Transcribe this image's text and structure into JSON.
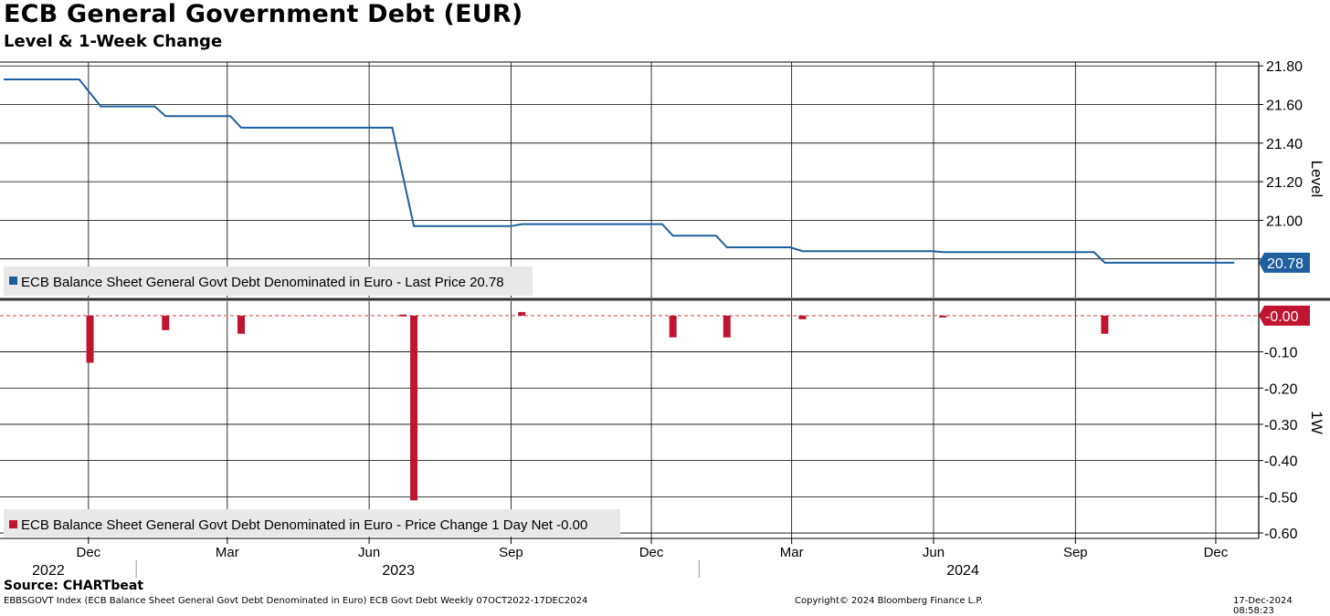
{
  "header": {
    "title": "ECB General Government Debt (EUR)",
    "subtitle": "Level & 1-Week Change"
  },
  "footer": {
    "source": "Source: CHARTbeat",
    "description": "EBBSGOVT Index (ECB Balance Sheet General Govt Debt Denominated in Euro) ECB Govt Debt  Weekly 07OCT2022-17DEC2024",
    "copyright": "Copyright© 2024 Bloomberg Finance L.P.",
    "timestamp": "17-Dec-2024 08:58:23"
  },
  "colors": {
    "level_line": "#1f5f9e",
    "change_bar": "#c0152f",
    "grid": "#000000",
    "zero_line": "#d9686e"
  },
  "chart_data": [
    {
      "type": "line",
      "ylabel": "Level",
      "ylim": [
        20.6,
        21.82
      ],
      "yticks": [
        21.8,
        21.6,
        21.4,
        21.2,
        21.0,
        20.8
      ],
      "ytick_labels": [
        "21.80",
        "21.60",
        "21.40",
        "21.20",
        "21.00",
        "20.80"
      ],
      "last_value_label": "20.78",
      "legend": "ECB Balance Sheet General Govt Debt Denominated in Euro - Last Price 20.78",
      "legend_position": "bottom-left",
      "grid": true,
      "series": [
        {
          "name": "ECB Balance Sheet General Govt Debt Denominated in Euro",
          "points": [
            [
              "2022-10-07",
              21.73
            ],
            [
              "2022-11-25",
              21.73
            ],
            [
              "2022-12-09",
              21.59
            ],
            [
              "2023-01-13",
              21.59
            ],
            [
              "2023-01-20",
              21.54
            ],
            [
              "2023-03-03",
              21.54
            ],
            [
              "2023-03-10",
              21.48
            ],
            [
              "2023-06-16",
              21.48
            ],
            [
              "2023-06-30",
              20.97
            ],
            [
              "2023-09-01",
              20.97
            ],
            [
              "2023-09-08",
              20.98
            ],
            [
              "2023-12-08",
              20.98
            ],
            [
              "2023-12-15",
              20.92
            ],
            [
              "2024-01-12",
              20.92
            ],
            [
              "2024-01-19",
              20.86
            ],
            [
              "2024-02-29",
              20.86
            ],
            [
              "2024-03-08",
              20.84
            ],
            [
              "2024-05-31",
              20.84
            ],
            [
              "2024-06-07",
              20.835
            ],
            [
              "2024-09-13",
              20.835
            ],
            [
              "2024-09-20",
              20.78
            ],
            [
              "2024-12-13",
              20.78
            ]
          ]
        }
      ]
    },
    {
      "type": "bar",
      "ylabel": "1W",
      "ylim": [
        -0.615,
        0.04
      ],
      "yticks": [
        -0.1,
        -0.2,
        -0.3,
        -0.4,
        -0.5,
        -0.6
      ],
      "ytick_labels": [
        "-0.10",
        "-0.20",
        "-0.30",
        "-0.40",
        "-0.50",
        "-0.60"
      ],
      "last_value_label": "-0.00",
      "legend": "ECB Balance Sheet General Govt Debt Denominated in Euro - Price Change 1 Day Net -0.00",
      "legend_position": "bottom-left",
      "grid": true,
      "series": [
        {
          "name": "ECB Balance Sheet General Govt Debt Denominated in Euro",
          "points": [
            [
              "2022-12-02",
              -0.13
            ],
            [
              "2023-01-20",
              -0.04
            ],
            [
              "2023-03-10",
              -0.05
            ],
            [
              "2023-06-23",
              0.003
            ],
            [
              "2023-06-30",
              -0.51
            ],
            [
              "2023-09-08",
              0.01
            ],
            [
              "2023-12-15",
              -0.06
            ],
            [
              "2024-01-19",
              -0.06
            ],
            [
              "2024-03-08",
              -0.01
            ],
            [
              "2024-06-07",
              -0.005
            ],
            [
              "2024-09-20",
              -0.05
            ]
          ]
        }
      ]
    }
  ],
  "x_axis": {
    "range": [
      "2022-10-07",
      "2024-12-20"
    ],
    "month_ticks": [
      {
        "date": "2022-12-01",
        "label": "Dec"
      },
      {
        "date": "2023-03-01",
        "label": "Mar"
      },
      {
        "date": "2023-06-01",
        "label": "Jun"
      },
      {
        "date": "2023-09-01",
        "label": "Sep"
      },
      {
        "date": "2023-12-01",
        "label": "Dec"
      },
      {
        "date": "2024-03-01",
        "label": "Mar"
      },
      {
        "date": "2024-06-01",
        "label": "Jun"
      },
      {
        "date": "2024-09-01",
        "label": "Sep"
      },
      {
        "date": "2024-12-01",
        "label": "Dec"
      }
    ],
    "year_labels": [
      {
        "date": "2022-11-05",
        "label": "2022"
      },
      {
        "date": "2023-06-20",
        "label": "2023"
      },
      {
        "date": "2024-06-20",
        "label": "2024"
      }
    ],
    "year_dividers": [
      "2023-01-01",
      "2024-01-01"
    ]
  }
}
